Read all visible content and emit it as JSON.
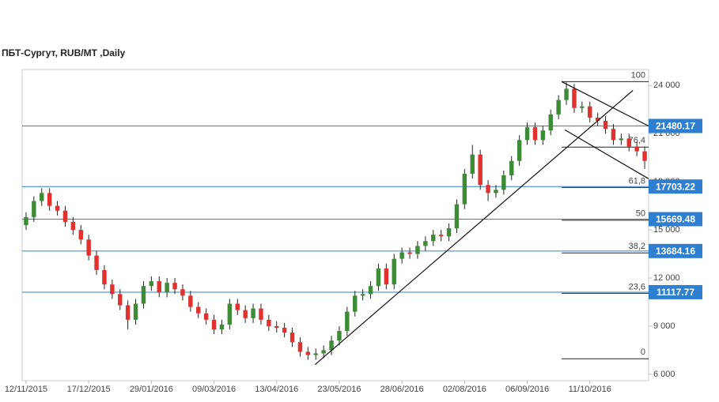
{
  "chart_data": {
    "type": "candlestick",
    "title": "ПБТ-Сургут,  RUB/MT ,Daily",
    "ylim": [
      5600,
      25000
    ],
    "yticks": [
      {
        "value": 6000,
        "label": "6 000"
      },
      {
        "value": 9000,
        "label": "9 000"
      },
      {
        "value": 12000,
        "label": "12 000"
      },
      {
        "value": 15000,
        "label": "15 000"
      },
      {
        "value": 18000,
        "label": "18 000"
      },
      {
        "value": 21000,
        "label": "21 000"
      },
      {
        "value": 24000,
        "label": "24 000"
      }
    ],
    "xticks": [
      {
        "value": 0,
        "label": "12/11/2015"
      },
      {
        "value": 8,
        "label": "17/12/2015"
      },
      {
        "value": 16,
        "label": "29/01/2016"
      },
      {
        "value": 24,
        "label": "09/03/2016"
      },
      {
        "value": 32,
        "label": "13/04/2016"
      },
      {
        "value": 40,
        "label": "23/05/2016"
      },
      {
        "value": 48,
        "label": "28/06/2016"
      },
      {
        "value": 56,
        "label": "02/08/2016"
      },
      {
        "value": 64,
        "label": "06/09/2016"
      },
      {
        "value": 72,
        "label": "11/10/2016"
      }
    ],
    "up_color": "#3d8b37",
    "down_color": "#e0312f",
    "open": [
      15300,
      15800,
      16800,
      17300,
      16500,
      16200,
      15500,
      15000,
      14400,
      13400,
      12500,
      11600,
      11000,
      10300,
      9400,
      10400,
      11500,
      11800,
      11100,
      11700,
      11300,
      10900,
      10200,
      9800,
      9400,
      8800,
      9100,
      10400,
      10000,
      9500,
      10100,
      9400,
      9000,
      8900,
      8600,
      8000,
      7400,
      7200,
      7300,
      7500,
      8100,
      8700,
      9900,
      10900,
      11000,
      11500,
      12600,
      11600,
      13200,
      13600,
      13500,
      14000,
      14300,
      14700,
      14600,
      15100,
      16600,
      18500,
      19700,
      17800,
      17300,
      17500,
      18400,
      19300,
      20600,
      21400,
      20600,
      21200,
      22200,
      23100,
      23800,
      22600,
      22700,
      22000,
      21800,
      21300,
      20600,
      20700,
      20200,
      19900
    ],
    "high": [
      16100,
      17100,
      17600,
      17600,
      16800,
      16500,
      15800,
      15300,
      14700,
      13700,
      12800,
      11900,
      11300,
      10600,
      10700,
      11800,
      12100,
      12100,
      12000,
      12000,
      11600,
      11200,
      10500,
      10100,
      9700,
      9400,
      10700,
      10700,
      10300,
      10400,
      10400,
      9700,
      9300,
      9200,
      8900,
      8300,
      7700,
      7600,
      7800,
      8400,
      9000,
      10200,
      11200,
      11300,
      11800,
      12900,
      12900,
      13500,
      13900,
      13900,
      14300,
      14600,
      15000,
      15000,
      15400,
      16900,
      18800,
      20300,
      20000,
      18100,
      17800,
      18700,
      19600,
      20900,
      21700,
      21700,
      21500,
      22500,
      23400,
      24200,
      24100,
      23000,
      23000,
      22300,
      22100,
      21600,
      21000,
      21000,
      20500,
      20200
    ],
    "low": [
      15000,
      15500,
      16500,
      16200,
      15900,
      15200,
      14700,
      14100,
      13100,
      12200,
      11300,
      10700,
      10000,
      8800,
      9100,
      10100,
      11200,
      10800,
      10800,
      11000,
      10600,
      9900,
      9500,
      9100,
      8500,
      8500,
      8800,
      9700,
      9200,
      9200,
      9100,
      8700,
      8600,
      8300,
      7700,
      7100,
      6900,
      6900,
      7000,
      7200,
      7800,
      8400,
      9600,
      10600,
      10700,
      11200,
      11300,
      11300,
      12900,
      13200,
      13200,
      13700,
      14000,
      14300,
      14300,
      14800,
      16300,
      18200,
      17500,
      16800,
      17000,
      17200,
      18100,
      19000,
      20300,
      20300,
      20300,
      20900,
      21900,
      22800,
      22300,
      22300,
      21700,
      21500,
      21000,
      20300,
      20300,
      19900,
      19600,
      18800
    ],
    "close": [
      15800,
      16800,
      17300,
      16500,
      16200,
      15500,
      15000,
      14400,
      13400,
      12500,
      11600,
      11000,
      10300,
      9400,
      10400,
      11500,
      11800,
      11100,
      11700,
      11300,
      10900,
      10200,
      9800,
      9400,
      8800,
      9100,
      10400,
      10000,
      9500,
      10100,
      9400,
      9000,
      8900,
      8600,
      8000,
      7400,
      7200,
      7300,
      7500,
      8100,
      8700,
      9900,
      10900,
      11000,
      11500,
      12600,
      11600,
      13200,
      13600,
      13500,
      14000,
      14300,
      14700,
      14600,
      15100,
      16600,
      18500,
      19700,
      17800,
      17300,
      17500,
      18400,
      19300,
      20600,
      21400,
      20600,
      21200,
      22200,
      23100,
      23800,
      22600,
      22700,
      22000,
      21800,
      21300,
      20600,
      20700,
      20200,
      19900,
      19300
    ],
    "levels": [
      21480.17,
      17703.22,
      15669.48,
      13684.16,
      11117.77
    ],
    "level_color": "#2f7fd0",
    "trend_lines": [
      {
        "x": [
          36.9,
          77.5
        ],
        "y": [
          6600,
          23700
        ]
      },
      {
        "x": [
          68.4,
          79.5
        ],
        "y": [
          24240,
          21480
        ]
      },
      {
        "x": [
          68.8,
          79.5
        ],
        "y": [
          21240,
          18190
        ]
      }
    ],
    "fibonacci": {
      "start": 68.4,
      "levels": [
        {
          "label": "100",
          "price": 24240
        },
        {
          "label": "76,4",
          "price": 20164
        },
        {
          "label": "61,8",
          "price": 17642
        },
        {
          "label": "50",
          "price": 15604
        },
        {
          "label": "38,2",
          "price": 13566
        },
        {
          "label": "23,6",
          "price": 11044
        },
        {
          "label": "0",
          "price": 6968
        }
      ]
    }
  }
}
